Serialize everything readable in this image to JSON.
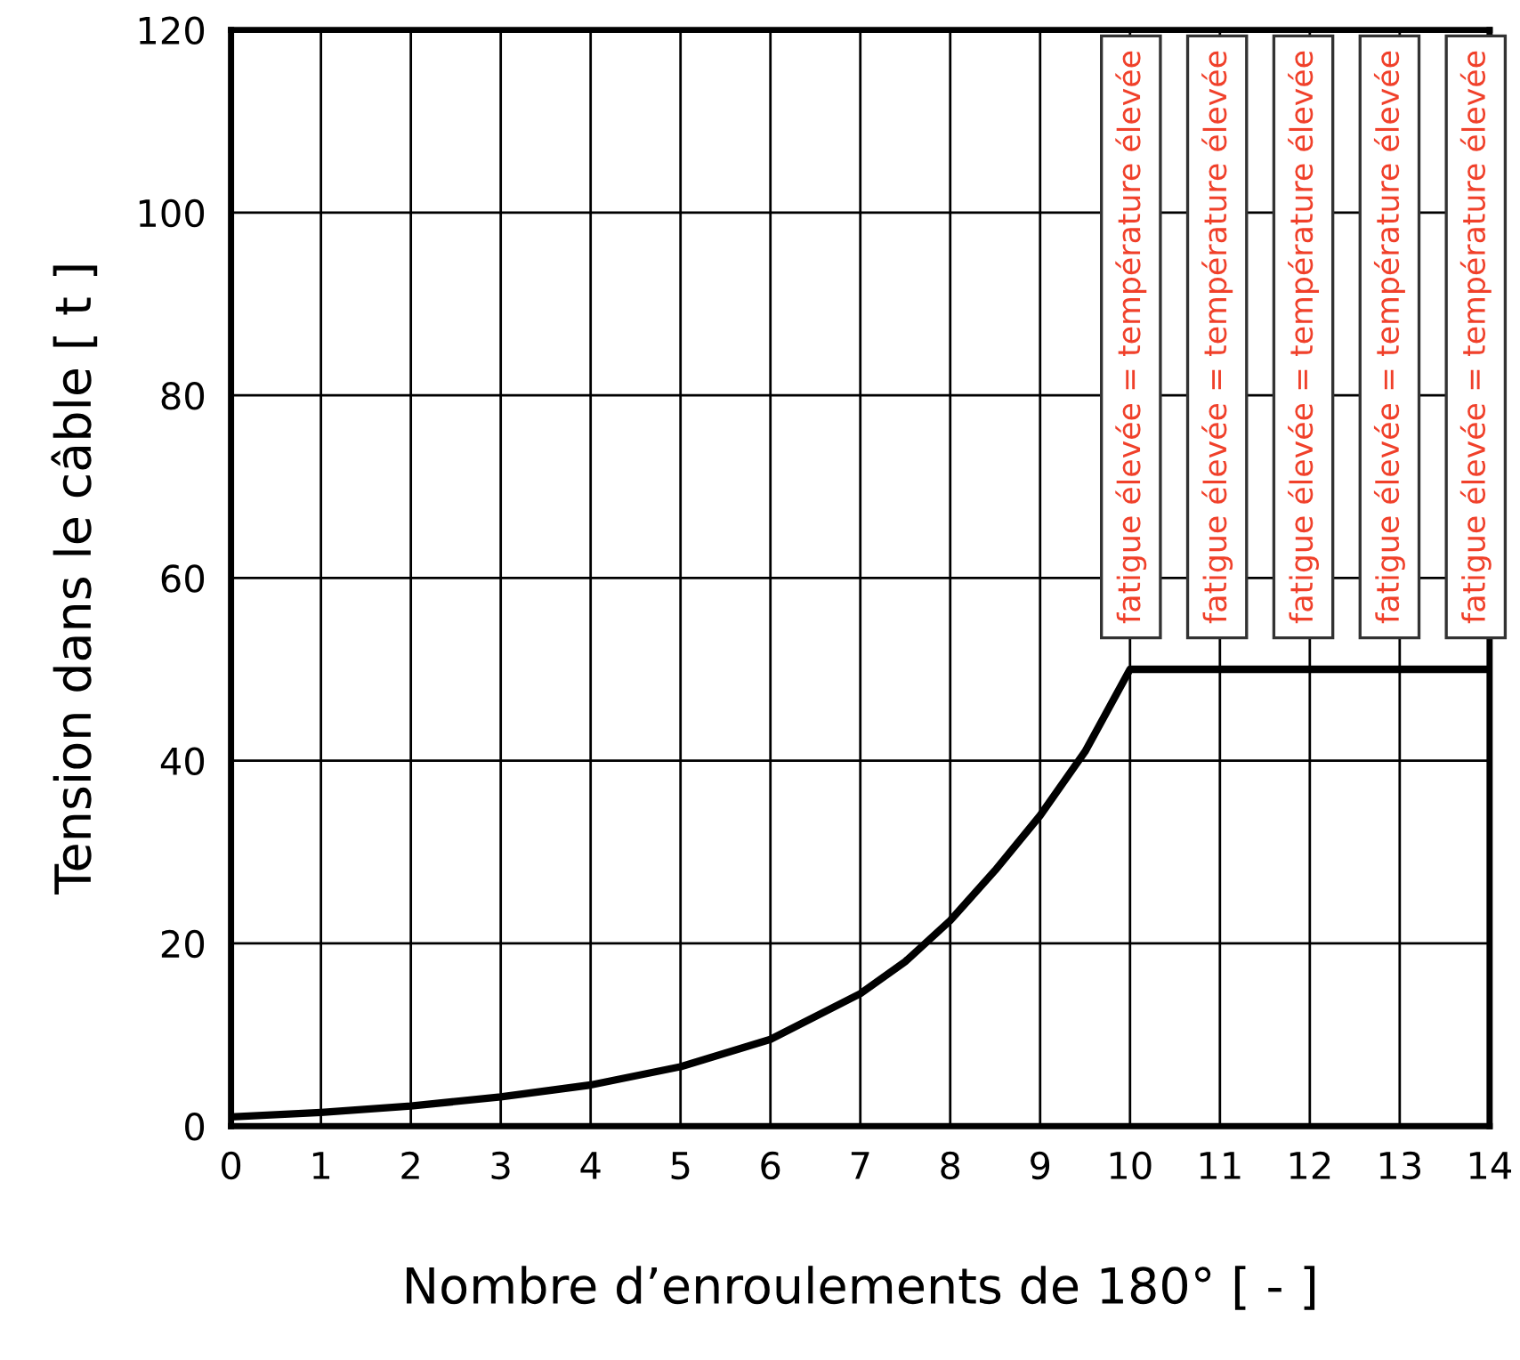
{
  "chart_data": {
    "type": "line",
    "xlabel": "Nombre d’enroulements de 180° [ - ]",
    "ylabel": "Tension dans le câble [ t ]",
    "x": [
      0,
      1,
      2,
      3,
      4,
      5,
      6,
      7,
      7.5,
      8,
      8.5,
      9,
      9.5,
      10,
      14
    ],
    "series": [
      {
        "color": "#000000",
        "values": [
          1,
          1.5,
          2.2,
          3.2,
          4.5,
          6.5,
          9.5,
          14.5,
          18,
          22.5,
          28,
          34,
          41,
          50,
          50
        ]
      }
    ],
    "xlim": [
      0,
      14
    ],
    "ylim": [
      0,
      120
    ],
    "xticks": [
      0,
      1,
      2,
      3,
      4,
      5,
      6,
      7,
      8,
      9,
      10,
      11,
      12,
      13,
      14
    ],
    "yticks": [
      0,
      20,
      40,
      60,
      80,
      100,
      120
    ],
    "grid": true,
    "marker": "none",
    "line_style": "solid",
    "annotations": [
      "fatigue élevée = température élevée",
      "fatigue élevée = température élevée",
      "fatigue élevée = température élevée",
      "fatigue élevée = température élevée",
      "fatigue élevée = température élevée"
    ]
  }
}
